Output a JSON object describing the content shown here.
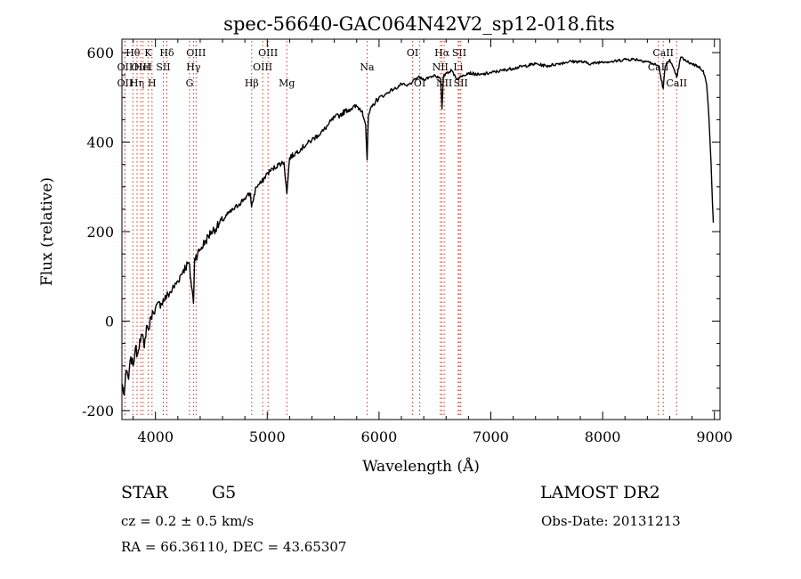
{
  "chart_data": {
    "type": "line",
    "title": "spec-56640-GAC064N42V2_sp12-018.fits",
    "xlabel": "Wavelength (Å)",
    "ylabel": "Flux (relative)",
    "xlim": [
      3700,
      9050
    ],
    "ylim": [
      -220,
      630
    ],
    "xticks": [
      4000,
      5000,
      6000,
      7000,
      8000,
      9000
    ],
    "yticks": [
      -200,
      0,
      200,
      400,
      600
    ],
    "grid": false,
    "series": [
      {
        "x": [
          3700,
          3720,
          3740,
          3760,
          3780,
          3800,
          3820,
          3840,
          3860,
          3880,
          3900,
          3920,
          3940,
          3960,
          3980,
          4000,
          4050,
          4100,
          4150,
          4200,
          4250,
          4300,
          4340,
          4350,
          4400,
          4450,
          4500,
          4550,
          4600,
          4650,
          4700,
          4750,
          4800,
          4850,
          4860,
          4900,
          4950,
          5000,
          5050,
          5100,
          5150,
          5175,
          5200,
          5250,
          5300,
          5350,
          5400,
          5450,
          5500,
          5550,
          5600,
          5650,
          5700,
          5750,
          5800,
          5850,
          5880,
          5893,
          5905,
          5950,
          6000,
          6050,
          6100,
          6150,
          6200,
          6250,
          6300,
          6350,
          6400,
          6450,
          6500,
          6550,
          6563,
          6575,
          6600,
          6650,
          6700,
          6750,
          6800,
          6900,
          7000,
          7100,
          7200,
          7300,
          7400,
          7500,
          7600,
          7700,
          7800,
          7900,
          8000,
          8100,
          8200,
          8300,
          8400,
          8450,
          8500,
          8542,
          8560,
          8600,
          8662,
          8700,
          8750,
          8800,
          8850,
          8900,
          8930,
          8950,
          8970,
          8990
        ],
        "y": [
          -140,
          -165,
          -110,
          -130,
          -80,
          -100,
          -60,
          -75,
          -40,
          -30,
          -60,
          -10,
          -20,
          10,
          20,
          30,
          40,
          55,
          70,
          90,
          115,
          130,
          40,
          140,
          160,
          180,
          200,
          210,
          225,
          240,
          250,
          262,
          275,
          285,
          255,
          300,
          310,
          330,
          340,
          350,
          355,
          285,
          365,
          375,
          385,
          395,
          405,
          415,
          425,
          440,
          455,
          460,
          470,
          475,
          480,
          470,
          440,
          360,
          460,
          485,
          500,
          505,
          515,
          520,
          530,
          525,
          535,
          545,
          540,
          545,
          550,
          540,
          475,
          545,
          555,
          560,
          540,
          550,
          555,
          550,
          555,
          560,
          565,
          570,
          575,
          570,
          575,
          580,
          580,
          575,
          580,
          580,
          585,
          585,
          580,
          575,
          570,
          520,
          570,
          585,
          545,
          590,
          580,
          575,
          570,
          560,
          530,
          460,
          350,
          220
        ],
        "color": "#000000"
      }
    ],
    "lines": [
      {
        "label": "Hθ",
        "x": 3798,
        "row": 1
      },
      {
        "label": "OII",
        "x": 3727,
        "row": 2
      },
      {
        "label": "OIII",
        "x": 3869,
        "row": 2
      },
      {
        "label": "OII",
        "x": 3727,
        "row": 3
      },
      {
        "label": "Hη",
        "x": 3835,
        "row": 3
      },
      {
        "label": "K",
        "x": 3934,
        "row": 1
      },
      {
        "label": "HeI",
        "x": 3889,
        "row": 2
      },
      {
        "label": "H",
        "x": 3969,
        "row": 3
      },
      {
        "label": "SII",
        "x": 4070,
        "row": 2
      },
      {
        "label": "Hδ",
        "x": 4102,
        "row": 1
      },
      {
        "label": "OIII",
        "x": 4363,
        "row": 1
      },
      {
        "label": "Hγ",
        "x": 4340,
        "row": 2
      },
      {
        "label": "G",
        "x": 4305,
        "row": 3
      },
      {
        "label": "Hβ",
        "x": 4861,
        "row": 3
      },
      {
        "label": "OIII",
        "x": 4959,
        "row": 2
      },
      {
        "label": "OIII",
        "x": 5007,
        "row": 1
      },
      {
        "label": "Mg",
        "x": 5175,
        "row": 3
      },
      {
        "label": "Na",
        "x": 5893,
        "row": 2
      },
      {
        "label": "OI",
        "x": 6300,
        "row": 1
      },
      {
        "label": "OI",
        "x": 6364,
        "row": 3
      },
      {
        "label": "Hα",
        "x": 6563,
        "row": 1
      },
      {
        "label": "NII",
        "x": 6548,
        "row": 2
      },
      {
        "label": "NII",
        "x": 6583,
        "row": 3
      },
      {
        "label": "Li",
        "x": 6708,
        "row": 2
      },
      {
        "label": "SII",
        "x": 6717,
        "row": 1
      },
      {
        "label": "SII",
        "x": 6731,
        "row": 3
      },
      {
        "label": "CaII",
        "x": 8542,
        "row": 1
      },
      {
        "label": "CaII",
        "x": 8498,
        "row": 2
      },
      {
        "label": "CaII",
        "x": 8662,
        "row": 3
      }
    ]
  },
  "info": {
    "object": "STAR",
    "subclass": "G5",
    "survey": "LAMOST DR2",
    "cz": "cz = 0.2 ± 0.5 km/s",
    "obs_date": "Obs-Date: 20131213",
    "radec": "RA =  66.36110, DEC =  43.65307"
  }
}
